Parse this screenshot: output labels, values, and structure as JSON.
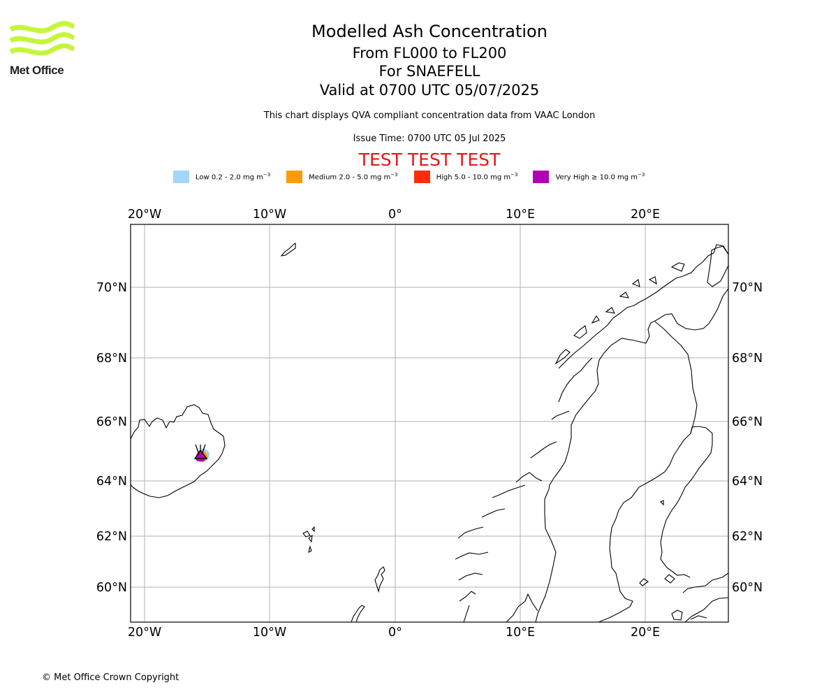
{
  "brand": {
    "name": "Met Office",
    "logo_color": "#c5f53a"
  },
  "header": {
    "title": "Modelled Ash Concentration",
    "levels": "From FL000 to FL200",
    "volcano": "For SNAEFELL",
    "valid": "Valid at 0700 UTC 05/07/2025",
    "description": "This chart displays QVA compliant concentration data from VAAC London",
    "issue_time": "Issue Time: 0700 UTC 05 Jul 2025",
    "test_banner": "TEST TEST TEST",
    "test_color": "#e8141a"
  },
  "legend": {
    "items": [
      {
        "label": "Low 0.2 - 2.0 mg m",
        "exponent": "−3",
        "color": "#a3d5fb"
      },
      {
        "label": "Medium 2.0 - 5.0 mg m",
        "exponent": "−3",
        "color": "#ff9b06"
      },
      {
        "label": "High 5.0 - 10.0 mg m",
        "exponent": "−3",
        "color": "#ff2c05"
      },
      {
        "label": "Very High  ≥  10.0 mg m",
        "exponent": "−3",
        "color": "#b102b2"
      }
    ]
  },
  "map": {
    "lon_labels": [
      "20°W",
      "10°W",
      "0°",
      "10°E",
      "20°E"
    ],
    "lat_labels": [
      "70°N",
      "68°N",
      "66°N",
      "64°N",
      "62°N",
      "60°N"
    ],
    "gridline_color": "#b0b0b0",
    "coastline_color": "#000000",
    "volcano_marker": "volcano-icon"
  },
  "footer": {
    "copyright": "© Met Office Crown Copyright"
  }
}
